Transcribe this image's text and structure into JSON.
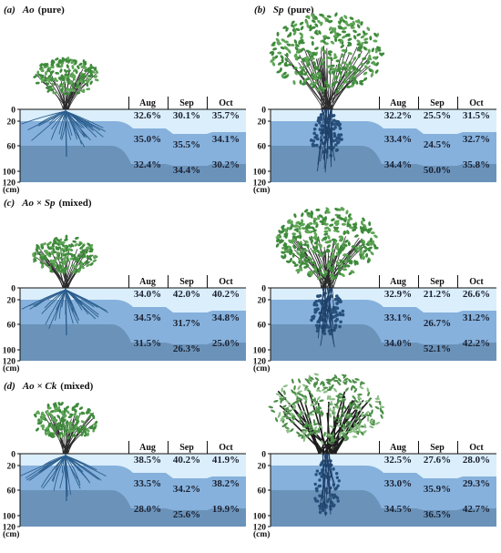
{
  "panels": [
    {
      "label_prefix": "(a)",
      "label_species": "Ao",
      "label_suffix": "(pure)",
      "tree": "Ao",
      "rows": [
        [
          "32.6%",
          "30.1%",
          "35.7%"
        ],
        [
          "35.0%",
          "35.5%",
          "34.1%"
        ],
        [
          "32.4%",
          "34.4%",
          "30.2%"
        ]
      ]
    },
    {
      "label_prefix": "(b)",
      "label_species": "Sp",
      "label_suffix": "(pure)",
      "tree": "Sp",
      "rows": [
        [
          "32.2%",
          "25.5%",
          "31.5%"
        ],
        [
          "33.4%",
          "24.5%",
          "32.7%"
        ],
        [
          "34.4%",
          "50.0%",
          "35.8%"
        ]
      ]
    },
    {
      "label_prefix": "(c)",
      "label_species": "Ao × Sp",
      "label_suffix": "(mixed)",
      "tree": "Ao",
      "rows": [
        [
          "34.0%",
          "42.0%",
          "40.2%"
        ],
        [
          "34.5%",
          "31.7%",
          "34.8%"
        ],
        [
          "31.5%",
          "26.3%",
          "25.0%"
        ]
      ]
    },
    {
      "label_prefix": "",
      "label_species": "",
      "label_suffix": "",
      "tree": "Sp",
      "rows": [
        [
          "32.9%",
          "21.2%",
          "26.6%"
        ],
        [
          "33.1%",
          "26.7%",
          "31.2%"
        ],
        [
          "34.0%",
          "52.1%",
          "42.2%"
        ]
      ]
    },
    {
      "label_prefix": "(d)",
      "label_species": "Ao × Ck",
      "label_suffix": "(mixed)",
      "tree": "Ao",
      "rows": [
        [
          "38.5%",
          "40.2%",
          "41.9%"
        ],
        [
          "33.5%",
          "34.2%",
          "38.2%"
        ],
        [
          "28.0%",
          "25.6%",
          "19.9%"
        ]
      ]
    },
    {
      "label_prefix": "",
      "label_species": "",
      "label_suffix": "",
      "tree": "Ck",
      "rows": [
        [
          "32.5%",
          "27.6%",
          "28.0%"
        ],
        [
          "33.0%",
          "35.9%",
          "29.3%"
        ],
        [
          "34.5%",
          "36.5%",
          "42.7%"
        ]
      ]
    }
  ],
  "months": [
    "Aug",
    "Sep",
    "Oct"
  ],
  "depth_ticks": [
    "0",
    "20",
    "60",
    "100",
    "120"
  ],
  "depth_unit": "(cm)",
  "colors": {
    "layer1": "#dbeefb",
    "layer2": "#86b1dc",
    "layer3": "#6b93ba",
    "foliage": "#3f8a3c",
    "foliage_light": "#5ea556",
    "stem": "#2a2a2a",
    "root": "#2c5f8f"
  }
}
